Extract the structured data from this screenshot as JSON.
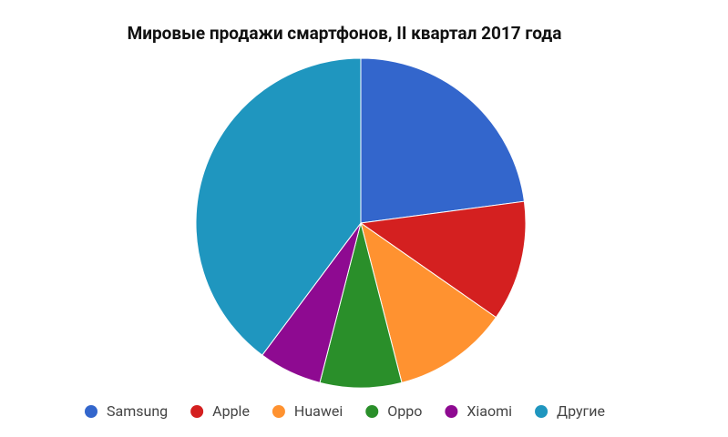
{
  "chart_data": {
    "type": "pie",
    "title": "Мировые продажи смартфонов, II квартал 2017 года",
    "categories": [
      "Samsung",
      "Apple",
      "Huawei",
      "Oppo",
      "Xiaomi",
      "Другие"
    ],
    "values": [
      22.9,
      11.8,
      11.3,
      8.0,
      6.2,
      39.8
    ],
    "colors": [
      "#3366cc",
      "#d42020",
      "#ff9230",
      "#2a8f2a",
      "#8e0a91",
      "#1f96bf"
    ],
    "legend": "bottom"
  }
}
